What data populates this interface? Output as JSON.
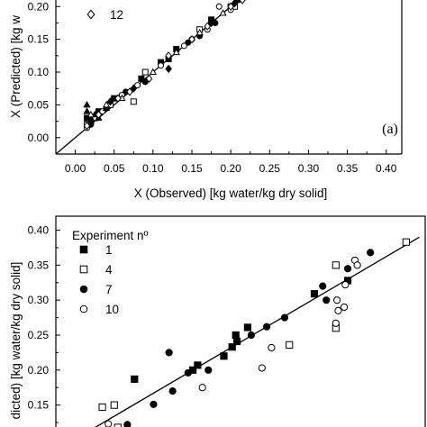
{
  "chart_data": [
    {
      "type": "scatter",
      "panel_label": "(a)",
      "xlabel": "X (Observed) [kg water/kg dry solid]",
      "ylabel": "X (Predicted) [kg water/kg dry solid]",
      "ylabel_visible": "X (Predicted) [kg w",
      "xlim": [
        -0.025,
        0.42
      ],
      "ylim": [
        -0.025,
        0.21
      ],
      "x_ticks": [
        "0.00",
        "0.05",
        "0.10",
        "0.15",
        "0.20",
        "0.25",
        "0.30",
        "0.35",
        "0.40"
      ],
      "x_tick_values": [
        0,
        0.05,
        0.1,
        0.15,
        0.2,
        0.25,
        0.3,
        0.35,
        0.4
      ],
      "y_ticks": [
        "0.00",
        "0.05",
        "0.10",
        "0.15",
        "0.20"
      ],
      "y_tick_values": [
        0,
        0.05,
        0.1,
        0.15,
        0.2
      ],
      "legend": [
        {
          "name": "12",
          "marker": "diamond-open"
        }
      ],
      "reference_line": {
        "from": [
          -0.025,
          -0.025
        ],
        "to": [
          0.235,
          0.235
        ]
      },
      "series": [
        {
          "marker": "square-filled",
          "points": [
            [
              0.015,
              0.03
            ],
            [
              0.02,
              0.025
            ],
            [
              0.03,
              0.04
            ],
            [
              0.05,
              0.06
            ],
            [
              0.085,
              0.09
            ],
            [
              0.11,
              0.115
            ],
            [
              0.13,
              0.135
            ],
            [
              0.175,
              0.18
            ],
            [
              0.2,
              0.2
            ],
            [
              0.23,
              0.22
            ]
          ]
        },
        {
          "marker": "square-open",
          "points": [
            [
              0.015,
              0.02
            ],
            [
              0.025,
              0.03
            ],
            [
              0.045,
              0.05
            ],
            [
              0.075,
              0.055
            ],
            [
              0.09,
              0.1
            ],
            [
              0.12,
              0.12
            ],
            [
              0.16,
              0.165
            ],
            [
              0.205,
              0.2
            ]
          ]
        },
        {
          "marker": "circle-filled",
          "points": [
            [
              0.02,
              0.02
            ],
            [
              0.04,
              0.045
            ],
            [
              0.065,
              0.07
            ],
            [
              0.09,
              0.085
            ],
            [
              0.12,
              0.12
            ],
            [
              0.145,
              0.145
            ],
            [
              0.16,
              0.155
            ],
            [
              0.18,
              0.175
            ],
            [
              0.21,
              0.21
            ]
          ]
        },
        {
          "marker": "circle-open",
          "points": [
            [
              0.015,
              0.015
            ],
            [
              0.035,
              0.04
            ],
            [
              0.06,
              0.065
            ],
            [
              0.08,
              0.08
            ],
            [
              0.11,
              0.11
            ],
            [
              0.14,
              0.14
            ],
            [
              0.15,
              0.15
            ],
            [
              0.17,
              0.165
            ],
            [
              0.185,
              0.2
            ],
            [
              0.2,
              0.195
            ]
          ]
        },
        {
          "marker": "triangle-filled",
          "points": [
            [
              0.015,
              0.05
            ],
            [
              0.015,
              0.04
            ],
            [
              0.02,
              0.03
            ],
            [
              0.025,
              0.035
            ],
            [
              0.03,
              0.03
            ],
            [
              0.04,
              0.045
            ]
          ]
        },
        {
          "marker": "triangle-open",
          "points": [
            [
              0.02,
              0.035
            ],
            [
              0.04,
              0.05
            ],
            [
              0.06,
              0.06
            ],
            [
              0.1,
              0.1
            ],
            [
              0.13,
              0.13
            ],
            [
              0.16,
              0.16
            ],
            [
              0.19,
              0.19
            ]
          ]
        },
        {
          "marker": "diamond-filled",
          "points": [
            [
              0.045,
              0.055
            ],
            [
              0.075,
              0.075
            ],
            [
              0.12,
              0.105
            ],
            [
              0.175,
              0.175
            ],
            [
              0.205,
              0.205
            ]
          ]
        },
        {
          "marker": "diamond-open",
          "points": [
            [
              0.015,
              0.018
            ],
            [
              0.03,
              0.035
            ],
            [
              0.055,
              0.06
            ],
            [
              0.07,
              0.07
            ],
            [
              0.095,
              0.09
            ],
            [
              0.12,
              0.125
            ],
            [
              0.15,
              0.15
            ],
            [
              0.17,
              0.17
            ],
            [
              0.2,
              0.2
            ],
            [
              0.215,
              0.21
            ]
          ]
        }
      ]
    },
    {
      "type": "scatter",
      "ylabel": "X (Predicted) [kg water/kg dry solid]",
      "ylabel_visible": "dicted) [kg water/kg dry solid]",
      "xlim": [
        0.085,
        0.395
      ],
      "ylim": [
        0.098,
        0.42
      ],
      "y_ticks": [
        "0.40",
        "0.35",
        "0.30",
        "0.25",
        "0.20",
        "0.15"
      ],
      "y_tick_values": [
        0.4,
        0.35,
        0.3,
        0.25,
        0.2,
        0.15
      ],
      "legend_title": "Experiment nº",
      "reference_line": {
        "from": [
          0.11,
          0.11
        ],
        "to": [
          0.39,
          0.39
        ]
      },
      "series": [
        {
          "name": "1",
          "marker": "square-filled",
          "points": [
            [
              0.151,
              0.187
            ],
            [
              0.2,
              0.2
            ],
            [
              0.204,
              0.207
            ],
            [
              0.226,
              0.22
            ],
            [
              0.233,
              0.233
            ],
            [
              0.237,
              0.241
            ],
            [
              0.236,
              0.25
            ],
            [
              0.246,
              0.261
            ],
            [
              0.302,
              0.309
            ],
            [
              0.33,
              0.328
            ]
          ]
        },
        {
          "name": "4",
          "marker": "square-open",
          "points": [
            [
              0.124,
              0.147
            ],
            [
              0.134,
              0.15
            ],
            [
              0.137,
              0.118
            ],
            [
              0.281,
              0.236
            ],
            [
              0.32,
              0.35
            ],
            [
              0.32,
              0.26
            ],
            [
              0.379,
              0.383
            ]
          ]
        },
        {
          "name": "7",
          "marker": "circle-filled",
          "points": [
            [
              0.145,
              0.122
            ],
            [
              0.167,
              0.151
            ],
            [
              0.183,
              0.17
            ],
            [
              0.18,
              0.225
            ],
            [
              0.196,
              0.196
            ],
            [
              0.213,
              0.2
            ],
            [
              0.249,
              0.25
            ],
            [
              0.262,
              0.262
            ],
            [
              0.277,
              0.275
            ],
            [
              0.309,
              0.32
            ],
            [
              0.312,
              0.3
            ],
            [
              0.33,
              0.345
            ],
            [
              0.349,
              0.368
            ]
          ]
        },
        {
          "name": "10",
          "marker": "circle-open",
          "points": [
            [
              0.129,
              0.123
            ],
            [
              0.208,
              0.175
            ],
            [
              0.258,
              0.203
            ],
            [
              0.266,
              0.232
            ],
            [
              0.32,
              0.267
            ],
            [
              0.321,
              0.3
            ],
            [
              0.322,
              0.285
            ],
            [
              0.327,
              0.29
            ],
            [
              0.336,
              0.357
            ],
            [
              0.328,
              0.322
            ],
            [
              0.338,
              0.35
            ]
          ]
        }
      ]
    }
  ]
}
